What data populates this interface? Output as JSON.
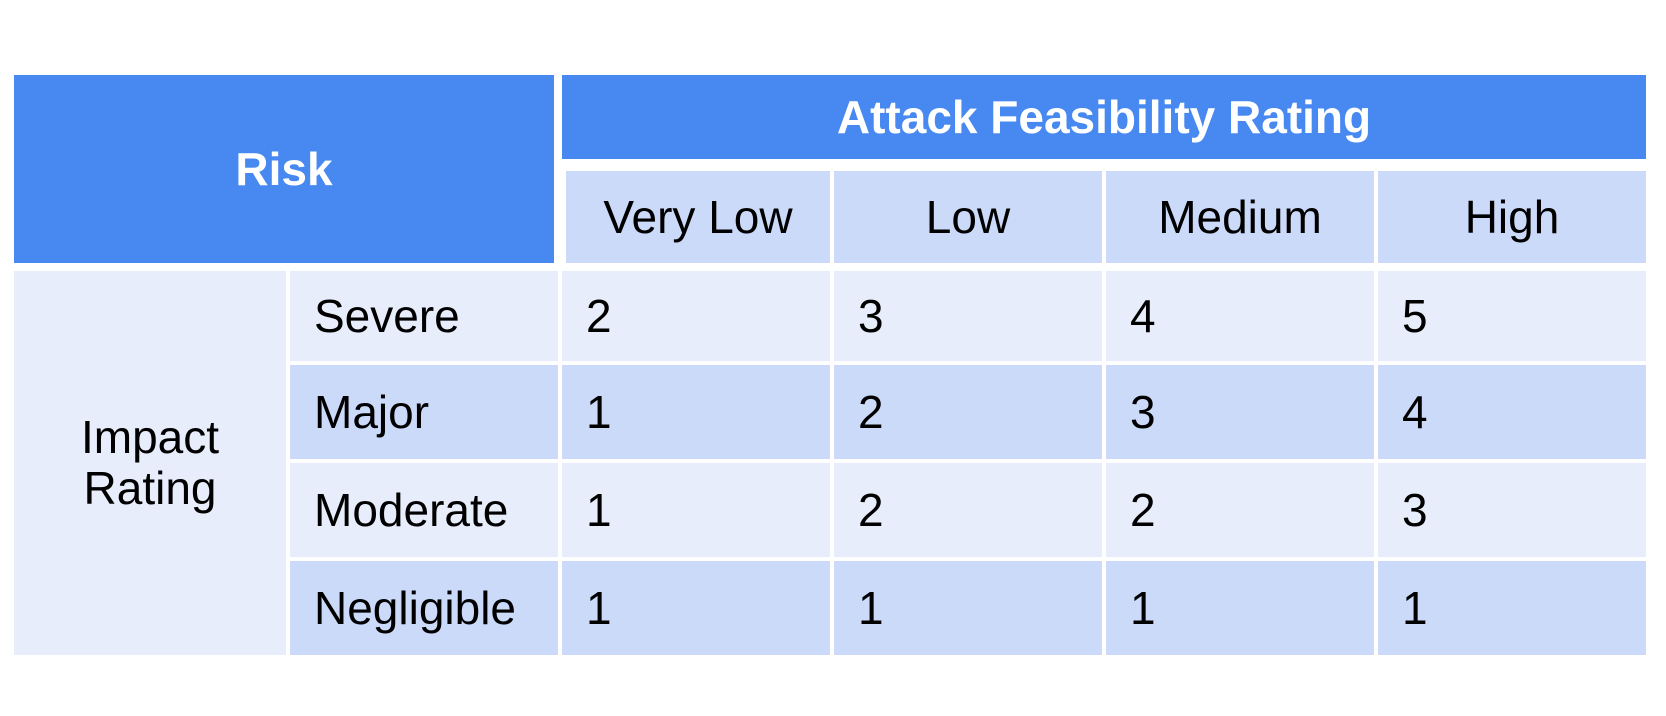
{
  "table": {
    "corner_label": "Risk",
    "column_group_label": "Attack Feasibility Rating",
    "row_group_label": "Impact Rating",
    "columns": [
      "Very Low",
      "Low",
      "Medium",
      "High"
    ],
    "rows": [
      {
        "label": "Severe",
        "values": [
          "2",
          "3",
          "4",
          "5"
        ]
      },
      {
        "label": "Major",
        "values": [
          "1",
          "2",
          "3",
          "4"
        ]
      },
      {
        "label": "Moderate",
        "values": [
          "1",
          "2",
          "2",
          "3"
        ]
      },
      {
        "label": "Negligible",
        "values": [
          "1",
          "1",
          "1",
          "1"
        ]
      }
    ]
  },
  "colors": {
    "header_blue": "#4788f1",
    "row_dark": "#ccdafa",
    "row_light": "#e8edfb"
  }
}
